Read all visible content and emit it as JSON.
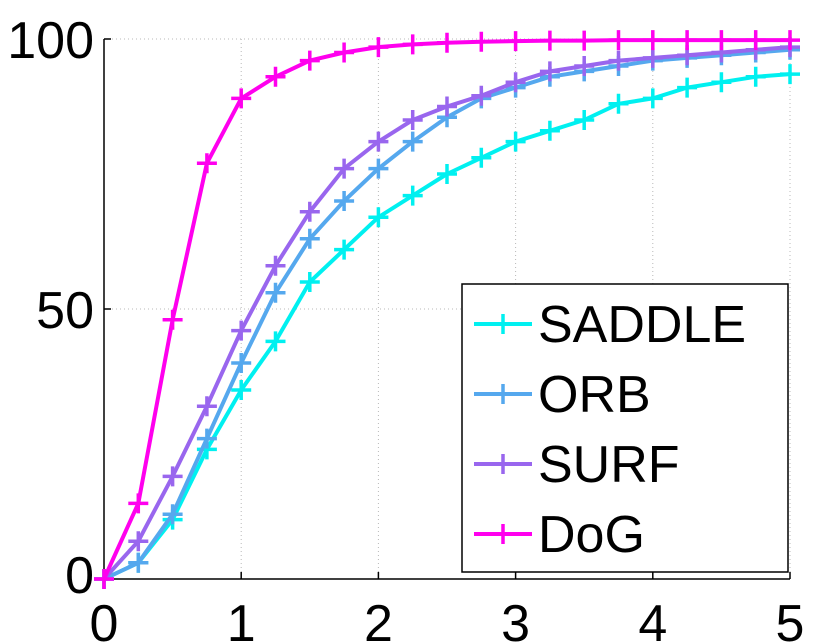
{
  "chart_data": {
    "type": "line",
    "title": "",
    "xlabel": "",
    "ylabel": "",
    "xlim": [
      0,
      5
    ],
    "ylim": [
      0,
      100
    ],
    "grid": true,
    "legend_position": "bottom-right",
    "x_ticks": [
      "0",
      "1",
      "2",
      "3",
      "4",
      "5"
    ],
    "y_ticks": [
      "0",
      "50",
      "100"
    ],
    "x": [
      0,
      0.25,
      0.5,
      0.75,
      1,
      1.25,
      1.5,
      1.75,
      2,
      2.25,
      2.5,
      2.75,
      3,
      3.25,
      3.5,
      3.75,
      4,
      4.25,
      4.5,
      4.75,
      5
    ],
    "series": [
      {
        "name": "SADDLE",
        "color": "#00f0f0",
        "values": [
          0,
          3,
          11,
          24,
          35,
          44,
          55,
          61,
          67,
          71,
          75,
          78,
          81,
          83,
          85,
          88,
          89,
          91,
          92,
          93,
          93.5
        ]
      },
      {
        "name": "ORB",
        "color": "#55a8ee",
        "values": [
          0,
          3,
          12,
          26,
          40,
          53,
          63,
          70,
          76,
          81,
          85.5,
          89,
          91,
          93,
          94,
          95,
          96,
          96.5,
          97,
          97.5,
          98
        ]
      },
      {
        "name": "SURF",
        "color": "#9966ee",
        "values": [
          0,
          7,
          19,
          32,
          46,
          58,
          68,
          76,
          81,
          85,
          87.5,
          89.5,
          92,
          94,
          95,
          96,
          96.5,
          97,
          97.5,
          98,
          98.5
        ]
      },
      {
        "name": "DoG",
        "color": "#ff00ee",
        "values": [
          0,
          14,
          48,
          77,
          89,
          93,
          96,
          97.5,
          98.5,
          99,
          99.3,
          99.5,
          99.6,
          99.7,
          99.7,
          99.8,
          99.8,
          99.8,
          99.8,
          99.8,
          99.8
        ]
      }
    ]
  }
}
